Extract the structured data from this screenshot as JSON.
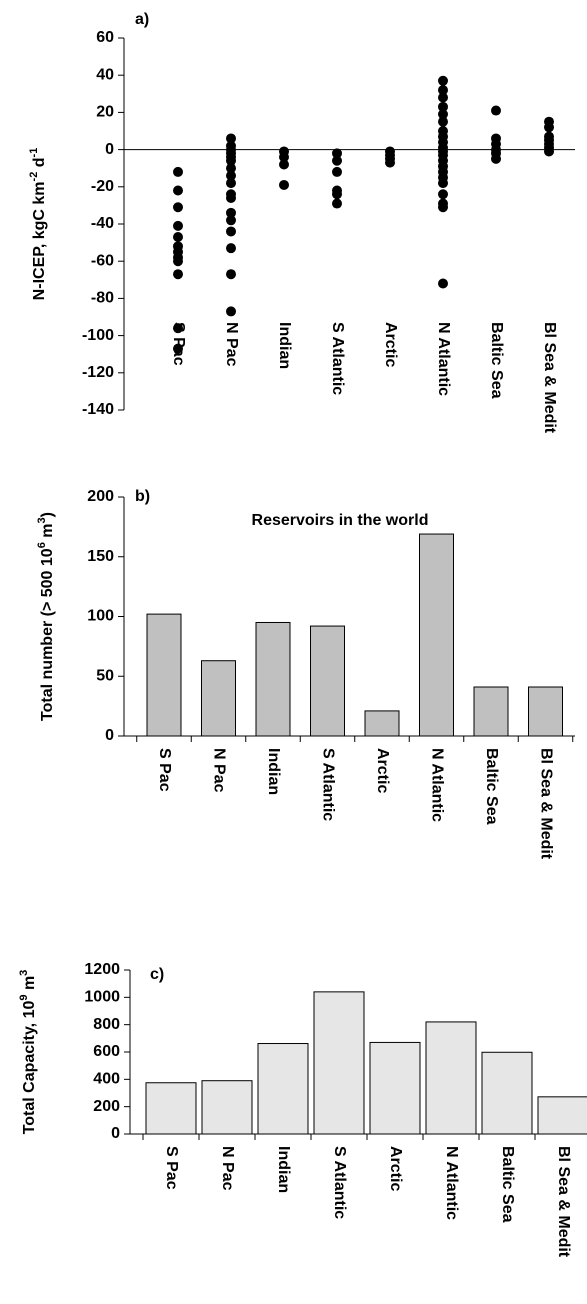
{
  "chart_data": [
    {
      "type": "scatter",
      "label": "a)",
      "ylabel": [
        "N-ICEP, kgC km",
        "-2",
        " d",
        "-1"
      ],
      "categories": [
        "S Pac",
        "N Pac",
        "Indian",
        "S Atlantic",
        "Arctic",
        "N Atlantic",
        "Baltic Sea",
        "Bl Sea & Medit"
      ],
      "values": [
        [
          -12,
          -22,
          -31,
          -41,
          -47,
          -52,
          -55,
          -58,
          -60,
          -67,
          -96,
          -107
        ],
        [
          6,
          2,
          0,
          -2,
          -4,
          -6,
          -10,
          -14,
          -18,
          -24,
          -26,
          -34,
          -38,
          -44,
          -53,
          -67,
          -87
        ],
        [
          -1,
          -4,
          -8,
          -19
        ],
        [
          -2,
          -6,
          -12,
          -22,
          -24,
          -29
        ],
        [
          -1,
          -3,
          -5,
          -7
        ],
        [
          37,
          32,
          28,
          23,
          19,
          15,
          10,
          7,
          4,
          1,
          -1,
          -3,
          -6,
          -9,
          -12,
          -15,
          -18,
          -24,
          -29,
          -31,
          -72
        ],
        [
          21,
          6,
          3,
          0,
          -2,
          -5
        ],
        [
          15,
          12,
          7,
          5,
          3,
          1,
          -1
        ]
      ],
      "color": "#000000",
      "zero_line": true,
      "ylim": [
        -140,
        60
      ],
      "yticks": [
        -140,
        -120,
        -100,
        -80,
        -60,
        -40,
        -20,
        0,
        20,
        40,
        60
      ]
    },
    {
      "type": "bar",
      "label": "b)",
      "title": "Reservoirs in the world",
      "ylabel": [
        "Total number (> 500 10",
        "6",
        " m",
        "3",
        ")"
      ],
      "categories": [
        "S Pac",
        "N Pac",
        "Indian",
        "S Atlantic",
        "Arctic",
        "N Atlantic",
        "Baltic Sea",
        "Bl Sea & Medit"
      ],
      "values": [
        102,
        63,
        95,
        92,
        21,
        169,
        41,
        41
      ],
      "color": "#c0c0c0",
      "ylim": [
        0,
        200
      ],
      "yticks": [
        0,
        50,
        100,
        150,
        200
      ]
    },
    {
      "type": "bar",
      "label": "c)",
      "ylabel": [
        "Total Capacity, 10",
        "9",
        " m",
        "3"
      ],
      "categories": [
        "S Pac",
        "N Pac",
        "Indian",
        "S Atlantic",
        "Arctic",
        "N Atlantic",
        "Baltic Sea",
        "Bl Sea & Medit"
      ],
      "values": [
        375,
        390,
        662,
        1040,
        670,
        820,
        598,
        272
      ],
      "color": "#e6e6e6",
      "ylim": [
        0,
        1200
      ],
      "yticks": [
        0,
        200,
        400,
        600,
        800,
        1000,
        1200
      ]
    }
  ]
}
